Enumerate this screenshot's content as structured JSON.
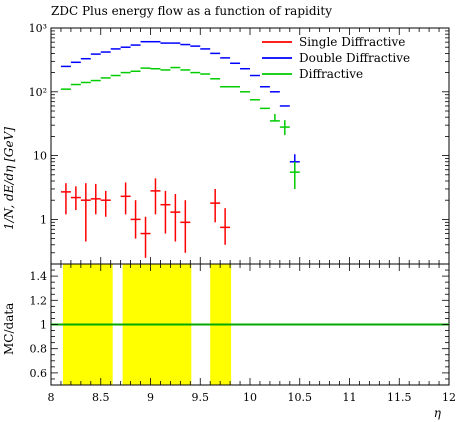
{
  "chart_data": {
    "type": "scatter",
    "title": "ZDC Plus energy flow as a function of rapidity",
    "xlabel": "η",
    "ylabel": "1/N, dE/dη [GeV]",
    "ratio_ylabel": "MC/data",
    "xlim": [
      8,
      12
    ],
    "ylim": [
      0.2,
      1000
    ],
    "yscale": "log",
    "ratio_ylim": [
      0.5,
      1.5
    ],
    "x_ticks": [
      "8",
      "8.5",
      "9",
      "9.5",
      "10",
      "10.5",
      "11",
      "11.5",
      "12"
    ],
    "y_ticks": [
      "1",
      "10",
      "10²",
      "10³"
    ],
    "ratio_y_ticks": [
      "0.6",
      "0.8",
      "1",
      "1.2",
      "1.4"
    ],
    "legend_position": "top-right",
    "series": [
      {
        "name": "Single Diffractive",
        "color": "#ff0000",
        "x": [
          8.15,
          8.25,
          8.35,
          8.45,
          8.55,
          8.75,
          8.85,
          8.95,
          9.05,
          9.15,
          9.25,
          9.35,
          9.65,
          9.75
        ],
        "y": [
          2.7,
          2.2,
          2.0,
          2.1,
          2.0,
          2.3,
          1.0,
          0.6,
          2.8,
          1.7,
          1.3,
          0.9,
          1.8,
          0.75
        ],
        "err_lo": [
          1.5,
          0.8,
          1.55,
          0.9,
          0.9,
          1.1,
          0.5,
          0.35,
          1.6,
          1.1,
          0.85,
          0.6,
          0.9,
          0.35
        ],
        "err_hi": [
          1.0,
          1.1,
          1.7,
          1.5,
          0.8,
          1.5,
          1.0,
          0.5,
          1.6,
          1.1,
          1.2,
          1.1,
          1.2,
          0.75
        ]
      },
      {
        "name": "Double Diffractive",
        "color": "#0000ff",
        "x": [
          8.15,
          8.25,
          8.35,
          8.45,
          8.55,
          8.65,
          8.75,
          8.85,
          8.95,
          9.05,
          9.15,
          9.25,
          9.35,
          9.45,
          9.55,
          9.65,
          9.75,
          9.85,
          9.95,
          10.05,
          10.15,
          10.25,
          10.35,
          10.45
        ],
        "y": [
          250,
          290,
          330,
          390,
          420,
          470,
          500,
          540,
          610,
          610,
          580,
          580,
          550,
          520,
          470,
          400,
          340,
          280,
          230,
          180,
          120,
          100,
          60,
          8
        ],
        "err_lo": [
          0,
          0,
          0,
          0,
          0,
          0,
          0,
          0,
          0,
          0,
          0,
          0,
          0,
          0,
          0,
          0,
          0,
          0,
          0,
          0,
          0,
          0,
          0,
          2.5
        ],
        "err_hi": [
          0,
          0,
          0,
          0,
          0,
          0,
          0,
          0,
          0,
          0,
          0,
          0,
          0,
          0,
          0,
          0,
          0,
          0,
          0,
          0,
          0,
          0,
          0,
          2.5
        ]
      },
      {
        "name": "Diffractive",
        "color": "#00cc00",
        "x": [
          8.15,
          8.25,
          8.35,
          8.45,
          8.55,
          8.65,
          8.75,
          8.85,
          8.95,
          9.05,
          9.15,
          9.25,
          9.35,
          9.45,
          9.55,
          9.65,
          9.75,
          9.85,
          9.95,
          10.05,
          10.15,
          10.25,
          10.35,
          10.45
        ],
        "y": [
          110,
          130,
          140,
          150,
          165,
          180,
          200,
          210,
          235,
          230,
          220,
          240,
          220,
          200,
          190,
          160,
          120,
          120,
          100,
          75,
          55,
          35,
          28,
          5.5
        ],
        "err_lo": [
          0,
          0,
          0,
          0,
          0,
          0,
          0,
          0,
          0,
          0,
          0,
          0,
          0,
          0,
          0,
          0,
          0,
          0,
          0,
          0,
          0,
          0,
          7,
          2.5
        ],
        "err_hi": [
          0,
          0,
          0,
          0,
          0,
          0,
          0,
          0,
          0,
          0,
          0,
          0,
          0,
          0,
          0,
          0,
          0,
          0,
          0,
          0,
          0,
          10,
          8,
          2.5
        ]
      }
    ],
    "ratio_bands": {
      "color": "#ffff00",
      "ranges": [
        [
          8.12,
          8.62
        ],
        [
          8.72,
          9.41
        ],
        [
          9.6,
          9.81
        ]
      ]
    },
    "ratio_line": {
      "value": 1,
      "color": "#00aa00"
    }
  }
}
